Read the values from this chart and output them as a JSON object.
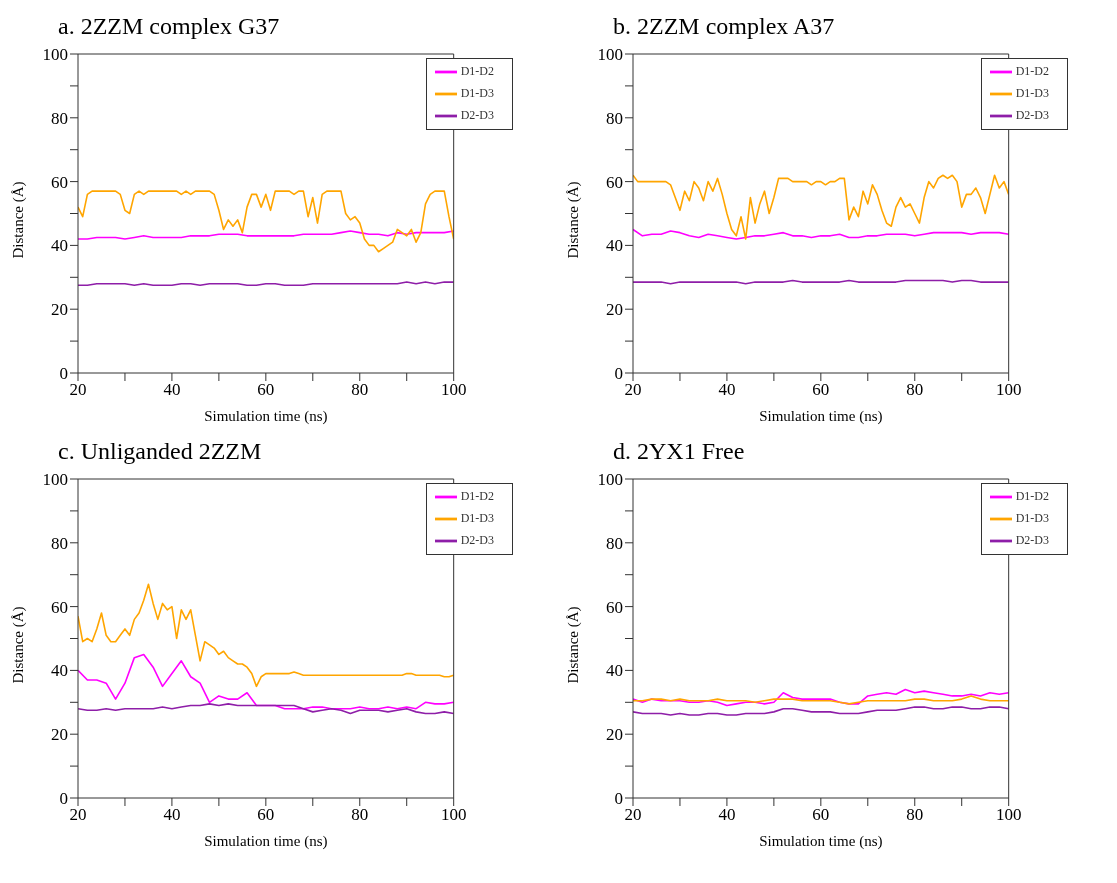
{
  "chart_data": [
    {
      "type": "line",
      "title": "a. 2ZZM complex G37",
      "xlabel": "Simulation time (ns)",
      "ylabel": "Distance (Å)",
      "xlim": [
        20,
        100
      ],
      "ylim": [
        0,
        100
      ],
      "xticks": [
        20,
        {
          "value": 30,
          "label": null
        },
        40,
        {
          "value": 50,
          "label": null
        },
        60,
        {
          "value": 70,
          "label": null
        },
        80,
        {
          "value": 90,
          "label": null
        },
        100
      ],
      "yticks": [
        0,
        {
          "value": 10,
          "label": null
        },
        20,
        {
          "value": 30,
          "label": null
        },
        40,
        {
          "value": 50,
          "label": null
        },
        60,
        {
          "value": 70,
          "label": null
        },
        80,
        {
          "value": 90,
          "label": null
        },
        100
      ],
      "legend": "top right",
      "marker": "none",
      "line_style": "solid",
      "x": [
        20,
        22,
        24,
        26,
        28,
        30,
        32,
        34,
        36,
        38,
        40,
        42,
        44,
        46,
        48,
        50,
        52,
        54,
        56,
        58,
        60,
        62,
        64,
        66,
        68,
        70,
        72,
        74,
        76,
        78,
        80,
        82,
        84,
        86,
        88,
        90,
        92,
        94,
        96,
        98,
        100
      ],
      "series": [
        {
          "name": "D1-D2",
          "color": "#ff00ff",
          "values": [
            42,
            42,
            42.5,
            42.5,
            42.5,
            42,
            42.5,
            43,
            42.5,
            42.5,
            42.5,
            42.5,
            43,
            43,
            43,
            43.5,
            43.5,
            43.5,
            43,
            43,
            43,
            43,
            43,
            43,
            43.5,
            43.5,
            43.5,
            43.5,
            44,
            44.5,
            44,
            43.5,
            43.5,
            43,
            44,
            43.5,
            44,
            44,
            44,
            44,
            44.5
          ]
        },
        {
          "name": "D1-D3",
          "color": "#ffa500",
          "x": [
            20,
            21,
            22,
            23,
            24,
            25,
            26,
            27,
            28,
            29,
            30,
            31,
            32,
            33,
            34,
            35,
            36,
            37,
            38,
            39,
            40,
            41,
            42,
            43,
            44,
            45,
            46,
            47,
            48,
            49,
            50,
            51,
            52,
            53,
            54,
            55,
            56,
            57,
            58,
            59,
            60,
            61,
            62,
            63,
            64,
            65,
            66,
            67,
            68,
            69,
            70,
            71,
            72,
            73,
            74,
            75,
            76,
            77,
            78,
            79,
            80,
            81,
            82,
            83,
            84,
            85,
            86,
            87,
            88,
            89,
            90,
            91,
            92,
            93,
            94,
            95,
            96,
            97,
            98,
            99,
            100
          ],
          "values": [
            52,
            49,
            56,
            57,
            57,
            57,
            57,
            57,
            57,
            56,
            51,
            50,
            56,
            57,
            56,
            57,
            57,
            57,
            57,
            57,
            57,
            57,
            56,
            57,
            56,
            57,
            57,
            57,
            57,
            56,
            51,
            45,
            48,
            46,
            48,
            44,
            52,
            56,
            56,
            52,
            56,
            51,
            57,
            57,
            57,
            57,
            56,
            57,
            57,
            49,
            55,
            47,
            56,
            57,
            57,
            57,
            57,
            50,
            48,
            49,
            47,
            42,
            40,
            40,
            38,
            39,
            40,
            41,
            45,
            44,
            43,
            45,
            41,
            44,
            53,
            56,
            57,
            57,
            57,
            49,
            42
          ]
        },
        {
          "name": "D2-D3",
          "color": "#8e1ea8",
          "values": [
            27.5,
            27.5,
            28,
            28,
            28,
            28,
            27.5,
            28,
            27.5,
            27.5,
            27.5,
            28,
            28,
            27.5,
            28,
            28,
            28,
            28,
            27.5,
            27.5,
            28,
            28,
            27.5,
            27.5,
            27.5,
            28,
            28,
            28,
            28,
            28,
            28,
            28,
            28,
            28,
            28,
            28.5,
            28,
            28.5,
            28,
            28.5,
            28.5
          ]
        }
      ]
    },
    {
      "type": "line",
      "title": "b. 2ZZM complex A37",
      "xlabel": "Simulation time (ns)",
      "ylabel": "Distance (Å)",
      "xlim": [
        20,
        100
      ],
      "ylim": [
        0,
        100
      ],
      "xticks": [
        20,
        {
          "value": 30,
          "label": null
        },
        40,
        {
          "value": 50,
          "label": null
        },
        60,
        {
          "value": 70,
          "label": null
        },
        80,
        {
          "value": 90,
          "label": null
        },
        100
      ],
      "yticks": [
        0,
        {
          "value": 10,
          "label": null
        },
        20,
        {
          "value": 30,
          "label": null
        },
        40,
        {
          "value": 50,
          "label": null
        },
        60,
        {
          "value": 70,
          "label": null
        },
        80,
        {
          "value": 90,
          "label": null
        },
        100
      ],
      "legend": "top right",
      "marker": "none",
      "line_style": "solid",
      "x": [
        20,
        22,
        24,
        26,
        28,
        30,
        32,
        34,
        36,
        38,
        40,
        42,
        44,
        46,
        48,
        50,
        52,
        54,
        56,
        58,
        60,
        62,
        64,
        66,
        68,
        70,
        72,
        74,
        76,
        78,
        80,
        82,
        84,
        86,
        88,
        90,
        92,
        94,
        96,
        98,
        100
      ],
      "series": [
        {
          "name": "D1-D2",
          "color": "#ff00ff",
          "values": [
            45,
            43,
            43.5,
            43.5,
            44.5,
            44,
            43,
            42.5,
            43.5,
            43,
            42.5,
            42,
            42.5,
            43,
            43,
            43.5,
            44,
            43,
            43,
            42.5,
            43,
            43,
            43.5,
            42.5,
            42.5,
            43,
            43,
            43.5,
            43.5,
            43.5,
            43,
            43.5,
            44,
            44,
            44,
            44,
            43.5,
            44,
            44,
            44,
            43.5
          ]
        },
        {
          "name": "D1-D3",
          "color": "#ffa500",
          "x": [
            20,
            21,
            22,
            23,
            24,
            25,
            26,
            27,
            28,
            29,
            30,
            31,
            32,
            33,
            34,
            35,
            36,
            37,
            38,
            39,
            40,
            41,
            42,
            43,
            44,
            45,
            46,
            47,
            48,
            49,
            50,
            51,
            52,
            53,
            54,
            55,
            56,
            57,
            58,
            59,
            60,
            61,
            62,
            63,
            64,
            65,
            66,
            67,
            68,
            69,
            70,
            71,
            72,
            73,
            74,
            75,
            76,
            77,
            78,
            79,
            80,
            81,
            82,
            83,
            84,
            85,
            86,
            87,
            88,
            89,
            90,
            91,
            92,
            93,
            94,
            95,
            96,
            97,
            98,
            99,
            100
          ],
          "values": [
            62,
            60,
            60,
            60,
            60,
            60,
            60,
            60,
            59,
            55,
            51,
            57,
            54,
            60,
            58,
            54,
            60,
            57,
            61,
            56,
            50,
            45,
            43,
            49,
            42,
            55,
            47,
            53,
            57,
            50,
            55,
            61,
            61,
            61,
            60,
            60,
            60,
            60,
            59,
            60,
            60,
            59,
            60,
            60,
            61,
            61,
            48,
            52,
            49,
            57,
            53,
            59,
            56,
            51,
            47,
            46,
            52,
            55,
            52,
            53,
            50,
            47,
            55,
            60,
            58,
            61,
            62,
            61,
            62,
            60,
            52,
            56,
            56,
            58,
            55,
            50,
            56,
            62,
            58,
            60,
            56
          ]
        },
        {
          "name": "D2-D3",
          "color": "#8e1ea8",
          "values": [
            28.5,
            28.5,
            28.5,
            28.5,
            28,
            28.5,
            28.5,
            28.5,
            28.5,
            28.5,
            28.5,
            28.5,
            28,
            28.5,
            28.5,
            28.5,
            28.5,
            29,
            28.5,
            28.5,
            28.5,
            28.5,
            28.5,
            29,
            28.5,
            28.5,
            28.5,
            28.5,
            28.5,
            29,
            29,
            29,
            29,
            29,
            28.5,
            29,
            29,
            28.5,
            28.5,
            28.5,
            28.5
          ]
        }
      ]
    },
    {
      "type": "line",
      "title": "c. Unliganded 2ZZM",
      "xlabel": "Simulation time (ns)",
      "ylabel": "Distance (Å)",
      "xlim": [
        20,
        100
      ],
      "ylim": [
        0,
        100
      ],
      "xticks": [
        20,
        {
          "value": 30,
          "label": null
        },
        40,
        {
          "value": 50,
          "label": null
        },
        60,
        {
          "value": 70,
          "label": null
        },
        80,
        {
          "value": 90,
          "label": null
        },
        100
      ],
      "yticks": [
        0,
        {
          "value": 10,
          "label": null
        },
        20,
        {
          "value": 30,
          "label": null
        },
        40,
        {
          "value": 50,
          "label": null
        },
        60,
        {
          "value": 70,
          "label": null
        },
        80,
        {
          "value": 90,
          "label": null
        },
        100
      ],
      "legend": "top right",
      "marker": "none",
      "line_style": "solid",
      "x": [
        20,
        22,
        24,
        26,
        28,
        30,
        32,
        34,
        36,
        38,
        40,
        42,
        44,
        46,
        48,
        50,
        52,
        54,
        56,
        58,
        60,
        62,
        64,
        66,
        68,
        70,
        72,
        74,
        76,
        78,
        80,
        82,
        84,
        86,
        88,
        90,
        92,
        94,
        96,
        98,
        100
      ],
      "series": [
        {
          "name": "D1-D2",
          "color": "#ff00ff",
          "values": [
            40,
            37,
            37,
            36,
            31,
            36,
            44,
            45,
            41,
            35,
            39,
            43,
            38,
            36,
            30,
            32,
            31,
            31,
            33,
            29,
            29,
            29,
            28,
            28,
            28,
            28.5,
            28.5,
            28,
            28,
            28,
            28.5,
            28,
            28,
            28.5,
            28,
            28.5,
            28,
            30,
            29.5,
            29.5,
            30
          ]
        },
        {
          "name": "D1-D3",
          "color": "#ffa500",
          "x": [
            20,
            21,
            22,
            23,
            24,
            25,
            26,
            27,
            28,
            29,
            30,
            31,
            32,
            33,
            34,
            35,
            36,
            37,
            38,
            39,
            40,
            41,
            42,
            43,
            44,
            45,
            46,
            47,
            48,
            49,
            50,
            51,
            52,
            53,
            54,
            55,
            56,
            57,
            58,
            59,
            60,
            61,
            62,
            63,
            64,
            65,
            66,
            67,
            68,
            69,
            70,
            71,
            72,
            73,
            74,
            75,
            76,
            77,
            78,
            79,
            80,
            81,
            82,
            83,
            84,
            85,
            86,
            87,
            88,
            89,
            90,
            91,
            92,
            93,
            94,
            95,
            96,
            97,
            98,
            99,
            100
          ],
          "values": [
            57,
            49,
            50,
            49,
            53,
            58,
            51,
            49,
            49,
            51,
            53,
            51,
            56,
            58,
            62,
            67,
            61,
            56,
            61,
            59,
            60,
            50,
            59,
            56,
            59,
            51,
            43,
            49,
            48,
            47,
            45,
            46,
            44,
            43,
            42,
            42,
            41,
            39,
            35,
            38,
            39,
            39,
            39,
            39,
            39,
            39,
            39.5,
            39,
            38.5,
            38.5,
            38.5,
            38.5,
            38.5,
            38.5,
            38.5,
            38.5,
            38.5,
            38.5,
            38.5,
            38.5,
            38.5,
            38.5,
            38.5,
            38.5,
            38.5,
            38.5,
            38.5,
            38.5,
            38.5,
            38.5,
            39,
            39,
            38.5,
            38.5,
            38.5,
            38.5,
            38.5,
            38.5,
            38,
            38,
            38.5
          ]
        },
        {
          "name": "D2-D3",
          "color": "#8e1ea8",
          "values": [
            28,
            27.5,
            27.5,
            28,
            27.5,
            28,
            28,
            28,
            28,
            28.5,
            28,
            28.5,
            29,
            29,
            29.5,
            29,
            29.5,
            29,
            29,
            29,
            29,
            29,
            29,
            29,
            28,
            27,
            27.5,
            28,
            27.5,
            26.5,
            27.5,
            27.5,
            27.5,
            27,
            27.5,
            28,
            27,
            26.5,
            26.5,
            27,
            26.5
          ]
        }
      ]
    },
    {
      "type": "line",
      "title": "d. 2YX1 Free",
      "xlabel": "Simulation time (ns)",
      "ylabel": "Distance (Å)",
      "xlim": [
        20,
        100
      ],
      "ylim": [
        0,
        100
      ],
      "xticks": [
        20,
        {
          "value": 30,
          "label": null
        },
        40,
        {
          "value": 50,
          "label": null
        },
        60,
        {
          "value": 70,
          "label": null
        },
        80,
        {
          "value": 90,
          "label": null
        },
        100
      ],
      "yticks": [
        0,
        {
          "value": 10,
          "label": null
        },
        20,
        {
          "value": 30,
          "label": null
        },
        40,
        {
          "value": 50,
          "label": null
        },
        60,
        {
          "value": 70,
          "label": null
        },
        80,
        {
          "value": 90,
          "label": null
        },
        100
      ],
      "legend": "top right",
      "marker": "none",
      "line_style": "solid",
      "x": [
        20,
        22,
        24,
        26,
        28,
        30,
        32,
        34,
        36,
        38,
        40,
        42,
        44,
        46,
        48,
        50,
        52,
        54,
        56,
        58,
        60,
        62,
        64,
        66,
        68,
        70,
        72,
        74,
        76,
        78,
        80,
        82,
        84,
        86,
        88,
        90,
        92,
        94,
        96,
        98,
        100
      ],
      "series": [
        {
          "name": "D1-D2",
          "color": "#ff00ff",
          "values": [
            31,
            30,
            31,
            30.5,
            30.5,
            30.5,
            30,
            30,
            30.5,
            30,
            29,
            29.5,
            30,
            30,
            29.5,
            30,
            33,
            31.5,
            31,
            31,
            31,
            31,
            30,
            29.5,
            29.5,
            32,
            32.5,
            33,
            32.5,
            34,
            33,
            33.5,
            33,
            32.5,
            32,
            32,
            32.5,
            32,
            33,
            32.5,
            33
          ]
        },
        {
          "name": "D1-D3",
          "color": "#ffa500",
          "values": [
            30.5,
            30.5,
            31,
            31,
            30.5,
            31,
            30.5,
            30.5,
            30.5,
            31,
            30.5,
            30.5,
            30.5,
            30,
            30.5,
            31,
            31,
            31,
            30.5,
            30.5,
            30.5,
            30.5,
            30,
            29.5,
            30,
            30.5,
            30.5,
            30.5,
            30.5,
            30.5,
            31,
            31,
            30.5,
            30.5,
            30.5,
            31,
            32,
            31,
            30.5,
            30.5,
            30.5
          ]
        },
        {
          "name": "D2-D3",
          "color": "#8e1ea8",
          "values": [
            27,
            26.5,
            26.5,
            26.5,
            26,
            26.5,
            26,
            26,
            26.5,
            26.5,
            26,
            26,
            26.5,
            26.5,
            26.5,
            27,
            28,
            28,
            27.5,
            27,
            27,
            27,
            26.5,
            26.5,
            26.5,
            27,
            27.5,
            27.5,
            27.5,
            28,
            28.5,
            28.5,
            28,
            28,
            28.5,
            28.5,
            28,
            28,
            28.5,
            28.5,
            28
          ]
        }
      ]
    }
  ]
}
